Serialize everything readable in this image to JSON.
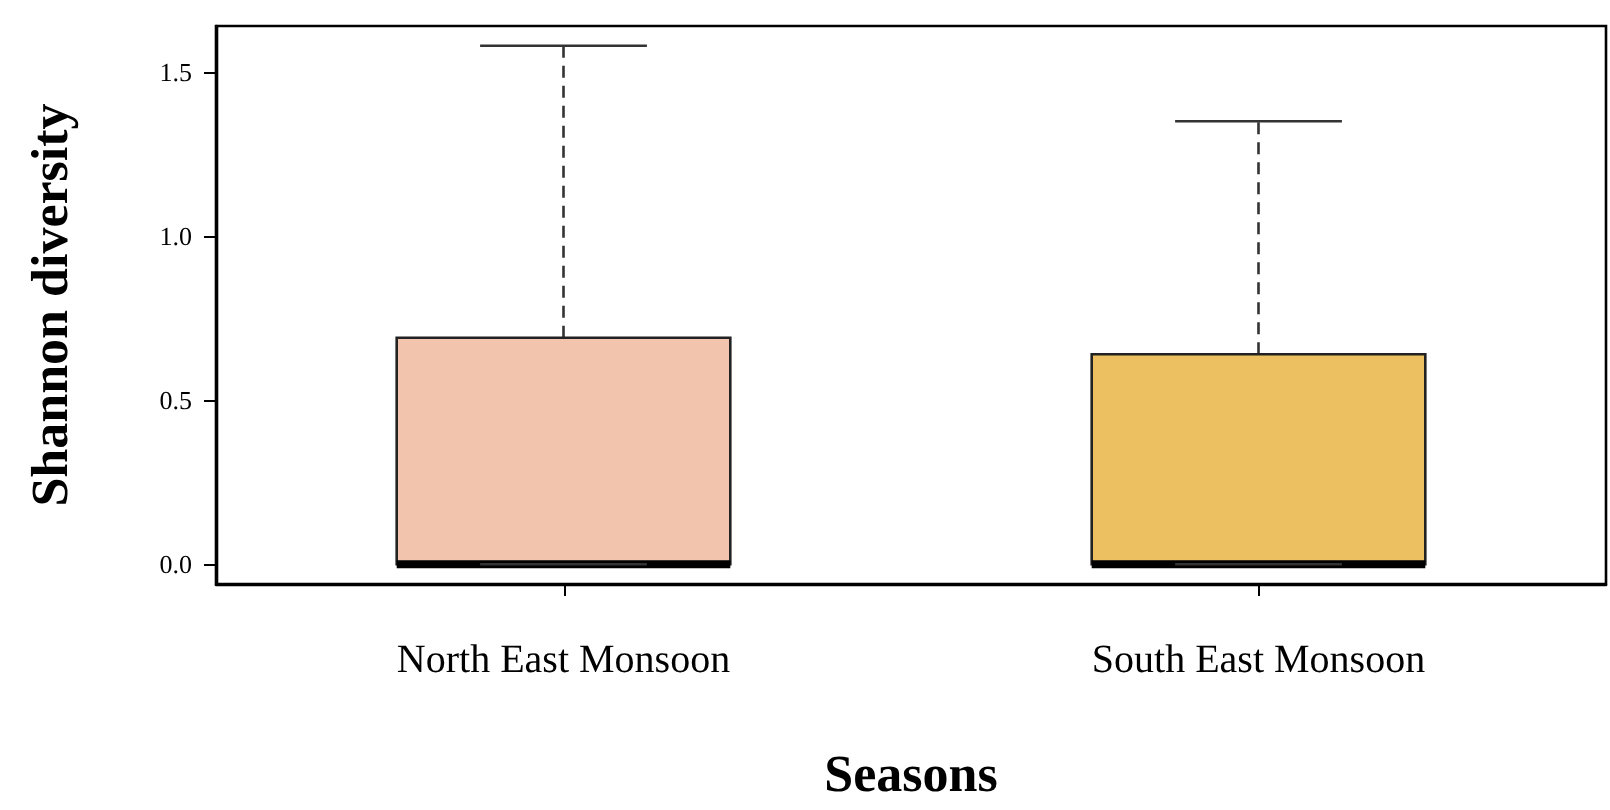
{
  "chart_data": {
    "type": "box",
    "xlabel": "Seasons",
    "ylabel": "Shannon diversity",
    "categories": [
      "North East Monsoon",
      "South East Monsoon"
    ],
    "boxes": [
      {
        "low": 0,
        "q1": 0,
        "median": 0,
        "q3": 0.69,
        "high": 1.58
      },
      {
        "low": 0,
        "q1": 0,
        "median": 0,
        "q3": 0.64,
        "high": 1.35
      }
    ],
    "colors": [
      "#f2c4ae",
      "#ecc061"
    ],
    "ylim": [
      -0.06,
      1.64
    ],
    "yticks": [
      {
        "value": 0,
        "label": "0.0"
      },
      0.5,
      {
        "value": 1,
        "label": "1.0"
      },
      1.5
    ],
    "grid": false,
    "line_style": "dashed"
  }
}
